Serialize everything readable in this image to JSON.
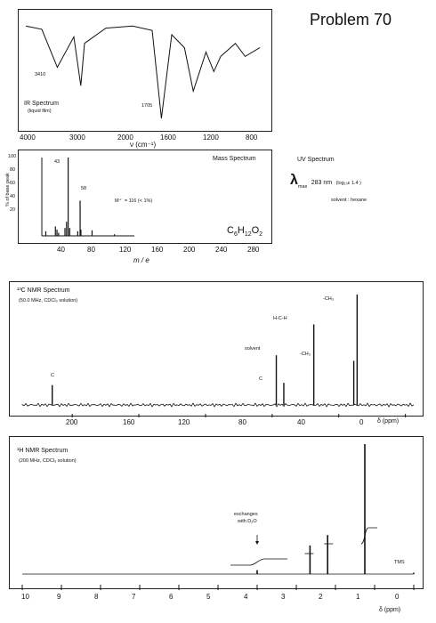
{
  "page": {
    "title": "Problem 70"
  },
  "ir": {
    "title": "IR Spectrum",
    "sample": "(liquid film)",
    "ticks": [
      "4000",
      "3000",
      "2000",
      "1600",
      "1200",
      "800"
    ],
    "xlabel": "ν (cm⁻¹)",
    "annotations": [
      "3410",
      "1705"
    ]
  },
  "mass": {
    "title": "Mass Spectrum",
    "ylabel": "% of base peak",
    "yticks": [
      "100",
      "80",
      "60",
      "40",
      "20"
    ],
    "xticks": [
      "40",
      "80",
      "120",
      "160",
      "200",
      "240",
      "280"
    ],
    "xlabel": "m / e",
    "peak_labels": [
      "43",
      "58"
    ],
    "molecular_ion": "M⁺˙ = 116 (< 1%)",
    "formula": "C6H12O2"
  },
  "uv": {
    "title": "UV Spectrum",
    "lambda_symbol": "λ",
    "lambda_sub": "max",
    "value": "283 nm",
    "log_text": "(log₁₀ε 1.4 )",
    "solvent": "solvent : hexane"
  },
  "c13": {
    "title": "¹³C NMR Spectrum",
    "conditions": "(50.0 MHz, CDCl₃ solution)",
    "xticks": [
      "200",
      "160",
      "120",
      "80",
      "40",
      "0"
    ],
    "xlabel": "δ (ppm)",
    "peak_labels": [
      "C",
      "solvent",
      "C",
      "H-C-H",
      "-CH₃",
      "-CH₃"
    ]
  },
  "h1": {
    "title": "¹H NMR Spectrum",
    "conditions": "(200 MHz, CDCl₃ solution)",
    "xticks": [
      "10",
      "9",
      "8",
      "7",
      "6",
      "5",
      "4",
      "3",
      "2",
      "1",
      "0"
    ],
    "xlabel": "δ (ppm)",
    "annotation_line1": "exchanges",
    "annotation_line2": "with D₂O",
    "tms": "TMS"
  },
  "chart_data": [
    {
      "type": "line",
      "title": "IR Spectrum",
      "xlabel": "ν (cm⁻¹)",
      "xlim": [
        4000,
        600
      ],
      "x": [
        4000,
        3700,
        3410,
        3100,
        2970,
        2900,
        2500,
        2000,
        1800,
        1705,
        1600,
        1470,
        1380,
        1250,
        1170,
        1100,
        950,
        850,
        700
      ],
      "series": [
        {
          "values": [
            90,
            87,
            52,
            80,
            35,
            74,
            88,
            90,
            86,
            5,
            82,
            70,
            30,
            66,
            48,
            62,
            74,
            62,
            70
          ]
        }
      ]
    },
    {
      "type": "bar",
      "title": "Mass Spectrum",
      "xlabel": "m / e",
      "ylabel": "% of base peak",
      "xlim": [
        10,
        300
      ],
      "ylim": [
        0,
        100
      ],
      "x": [
        15,
        27,
        29,
        31,
        39,
        41,
        43,
        45,
        55,
        58,
        59,
        73,
        101
      ],
      "values": [
        6,
        12,
        8,
        4,
        10,
        18,
        100,
        10,
        6,
        45,
        8,
        7,
        2
      ]
    },
    {
      "type": "line",
      "title": "¹³C NMR Spectrum",
      "xlabel": "δ (ppm)",
      "xlim": [
        230,
        -5
      ],
      "peaks": [
        {
          "x": 212,
          "height": 18,
          "label": "C"
        },
        {
          "x": 77.5,
          "height": 45,
          "label": "solvent"
        },
        {
          "x": 73,
          "height": 20,
          "label": "C"
        },
        {
          "x": 55,
          "height": 73,
          "label": "H-C-H"
        },
        {
          "x": 31,
          "height": 40,
          "label": "-CH₃"
        },
        {
          "x": 29,
          "height": 100,
          "label": "-CH₃"
        }
      ]
    },
    {
      "type": "line",
      "title": "¹H NMR Spectrum",
      "xlabel": "δ (ppm)",
      "xlim": [
        10,
        0
      ],
      "peaks": [
        {
          "x": 4.0,
          "height": 3
        },
        {
          "x": 2.65,
          "height": 22
        },
        {
          "x": 2.2,
          "height": 30
        },
        {
          "x": 1.25,
          "height": 100
        },
        {
          "x": 0,
          "height": 1
        }
      ]
    }
  ]
}
